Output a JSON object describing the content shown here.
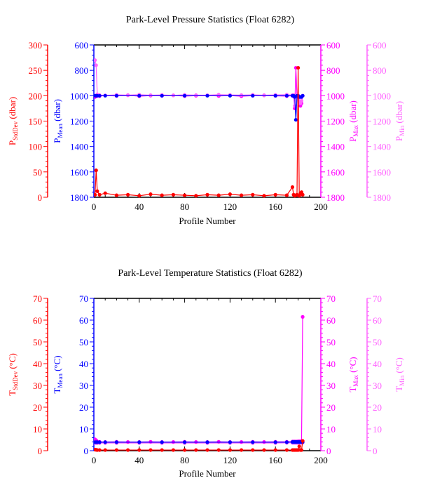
{
  "colors": {
    "stddev": "#ff0000",
    "mean": "#0000ff",
    "max": "#ff00ff",
    "min": "#ff66ff",
    "axis": "#000000"
  },
  "chart_data": [
    {
      "type": "line",
      "title": "Park-Level Pressure Statistics (Float 6282)",
      "xlabel": "Profile Number",
      "xlim": [
        0,
        200
      ],
      "xticks": [
        0,
        40,
        80,
        120,
        160,
        200
      ],
      "axes": {
        "stddev": {
          "label_main": "P",
          "label_sub": "StdDev",
          "label_unit": " (dbar)",
          "lim": [
            0,
            300
          ],
          "ticks": [
            0,
            50,
            100,
            150,
            200,
            250,
            300
          ],
          "inverted": false
        },
        "mean": {
          "label_main": "P",
          "label_sub": "Mean",
          "label_unit": " (dbar)",
          "lim": [
            600,
            1800
          ],
          "ticks": [
            600,
            800,
            1000,
            1200,
            1400,
            1600,
            1800
          ],
          "inverted": true
        },
        "max": {
          "label_main": "P",
          "label_sub": "Max",
          "label_unit": " (dbar)",
          "lim": [
            600,
            1800
          ],
          "ticks": [
            600,
            800,
            1000,
            1200,
            1400,
            1600,
            1800
          ],
          "inverted": true
        },
        "min": {
          "label_main": "P",
          "label_sub": "Min",
          "label_unit": " (dbar)",
          "lim": [
            600,
            1800
          ],
          "ticks": [
            600,
            800,
            1000,
            1200,
            1400,
            1600,
            1800
          ],
          "inverted": true
        }
      },
      "series": [
        {
          "key": "max",
          "x": [
            1,
            2,
            3,
            5,
            10,
            20,
            30,
            40,
            50,
            60,
            70,
            80,
            90,
            100,
            110,
            120,
            130,
            140,
            150,
            160,
            170,
            175,
            176,
            177,
            178,
            179,
            180,
            181,
            182,
            183,
            184
          ],
          "y": [
            1010,
            1005,
            1000,
            1003,
            998,
            1002,
            996,
            1004,
            999,
            1001,
            997,
            1003,
            1000,
            998,
            1002,
            999,
            1004,
            1000,
            997,
            1001,
            1003,
            1000,
            1005,
            1100,
            780,
            1000,
            1010,
            1050,
            1080,
            1060,
            1000
          ]
        },
        {
          "key": "min",
          "x": [
            1,
            2,
            3,
            5,
            10,
            20,
            30,
            40,
            50,
            60,
            70,
            80,
            90,
            100,
            110,
            120,
            130,
            140,
            150,
            160,
            170,
            175,
            176,
            177,
            178,
            179,
            180,
            181,
            182,
            183,
            184
          ],
          "y": [
            720,
            760,
            990,
            995,
            997,
            993,
            995,
            992,
            996,
            994,
            997,
            993,
            995,
            996,
            992,
            994,
            995,
            993,
            996,
            994,
            992,
            995,
            995,
            1080,
            1000,
            995,
            1000,
            1040,
            1060,
            1040,
            1000
          ]
        },
        {
          "key": "mean",
          "x": [
            1,
            2,
            3,
            5,
            10,
            20,
            40,
            60,
            80,
            100,
            120,
            140,
            160,
            170,
            175,
            176,
            177,
            178,
            179,
            180,
            181,
            182,
            183,
            184
          ],
          "y": [
            1000,
            1000,
            1000,
            1000,
            1000,
            1000,
            1000,
            1000,
            1000,
            1000,
            1000,
            1000,
            1000,
            1000,
            1000,
            1000,
            1010,
            1190,
            1000,
            1000,
            1010,
            1010,
            1010,
            1000
          ]
        },
        {
          "key": "stddev",
          "x": [
            1,
            2,
            3,
            5,
            10,
            20,
            30,
            40,
            50,
            60,
            70,
            80,
            90,
            100,
            110,
            120,
            130,
            140,
            150,
            160,
            170,
            175,
            176,
            177,
            178,
            179,
            180,
            181,
            182,
            183,
            184
          ],
          "y": [
            5,
            53,
            12,
            5,
            8,
            4,
            5,
            3,
            6,
            4,
            5,
            4,
            3,
            5,
            4,
            6,
            4,
            5,
            3,
            5,
            4,
            20,
            5,
            3,
            4,
            5,
            255,
            3,
            8,
            10,
            5
          ]
        }
      ]
    },
    {
      "type": "line",
      "title": "Park-Level Temperature Statistics (Float 6282)",
      "xlabel": "Profile Number",
      "xlim": [
        0,
        200
      ],
      "xticks": [
        0,
        40,
        80,
        120,
        160,
        200
      ],
      "axes": {
        "stddev": {
          "label_main": "T",
          "label_sub": "StdDev",
          "label_unit": " (°C)",
          "lim": [
            0,
            70
          ],
          "ticks": [
            0,
            10,
            20,
            30,
            40,
            50,
            60,
            70
          ],
          "inverted": false
        },
        "mean": {
          "label_main": "T",
          "label_sub": "Mean",
          "label_unit": " (°C)",
          "lim": [
            0,
            70
          ],
          "ticks": [
            0,
            10,
            20,
            30,
            40,
            50,
            60,
            70
          ],
          "inverted": false
        },
        "max": {
          "label_main": "T",
          "label_sub": "Max",
          "label_unit": " (°C)",
          "lim": [
            0,
            70
          ],
          "ticks": [
            0,
            10,
            20,
            30,
            40,
            50,
            60,
            70
          ],
          "inverted": false
        },
        "min": {
          "label_main": "T",
          "label_sub": "Min",
          "label_unit": " (°C)",
          "lim": [
            0,
            70
          ],
          "ticks": [
            0,
            10,
            20,
            30,
            40,
            50,
            60,
            70
          ],
          "inverted": false
        }
      },
      "series": [
        {
          "key": "min",
          "x": [
            1,
            2,
            3,
            5,
            10,
            20,
            40,
            60,
            80,
            100,
            120,
            140,
            160,
            170,
            175,
            176,
            177,
            178,
            179,
            180,
            181,
            182,
            183,
            184
          ],
          "y": [
            3.6,
            3.5,
            3.5,
            3.5,
            3.5,
            3.5,
            3.5,
            3.5,
            3.5,
            3.5,
            3.5,
            3.5,
            3.5,
            3.6,
            3.6,
            3.6,
            3.6,
            3.6,
            3.6,
            3.6,
            3.6,
            3.6,
            3.6,
            3.7
          ]
        },
        {
          "key": "max",
          "x": [
            1,
            2,
            3,
            5,
            10,
            20,
            30,
            40,
            50,
            60,
            70,
            80,
            90,
            100,
            110,
            120,
            130,
            140,
            150,
            160,
            170,
            175,
            176,
            177,
            178,
            179,
            180,
            181,
            182,
            183,
            184
          ],
          "y": [
            5.2,
            4.8,
            4.2,
            4.1,
            4.0,
            4.1,
            4.0,
            4.0,
            4.1,
            4.0,
            4.0,
            4.1,
            4.0,
            4.0,
            4.1,
            4.0,
            4.0,
            4.1,
            4.0,
            4.1,
            4.1,
            4.2,
            4.2,
            4.2,
            4.2,
            4.2,
            4.3,
            4.3,
            4.3,
            4.4,
            61.5
          ]
        },
        {
          "key": "mean",
          "x": [
            1,
            2,
            3,
            5,
            10,
            20,
            40,
            60,
            80,
            100,
            120,
            140,
            160,
            170,
            175,
            176,
            177,
            178,
            179,
            180,
            181,
            182,
            183,
            184
          ],
          "y": [
            3.9,
            3.9,
            3.9,
            3.9,
            3.9,
            3.9,
            3.9,
            3.9,
            3.9,
            3.9,
            3.9,
            3.9,
            3.9,
            3.9,
            4.0,
            4.0,
            4.0,
            4.0,
            4.0,
            4.0,
            4.0,
            4.0,
            4.0,
            4.0
          ]
        },
        {
          "key": "stddev",
          "x": [
            1,
            2,
            3,
            5,
            10,
            20,
            30,
            40,
            50,
            60,
            70,
            80,
            90,
            100,
            110,
            120,
            130,
            140,
            150,
            160,
            170,
            175,
            176,
            177,
            178,
            179,
            180,
            181,
            182,
            183,
            184
          ],
          "y": [
            0.5,
            0.4,
            0.3,
            0.3,
            0.3,
            0.3,
            0.3,
            0.3,
            0.3,
            0.3,
            0.3,
            0.3,
            0.3,
            0.3,
            0.3,
            0.3,
            0.3,
            0.3,
            0.3,
            0.3,
            0.3,
            0.3,
            0.3,
            0.3,
            0.3,
            0.3,
            0.3,
            2.0,
            0.3,
            0.3,
            4.5
          ]
        }
      ]
    }
  ]
}
